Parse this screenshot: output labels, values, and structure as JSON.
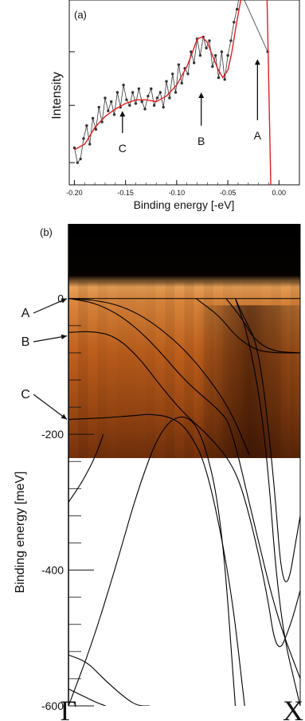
{
  "figure": {
    "colors": {
      "data": "#333333",
      "fit": "#e02020",
      "axis": "#111111",
      "band": "#000000",
      "intensity_high": "#fde6c8",
      "intensity_mid": "#c8641e",
      "intensity_low": "#2a0c02"
    }
  },
  "chart_data": [
    {
      "type": "line",
      "panel_label": "(a)",
      "xlabel": "Binding energy [-eV]",
      "ylabel": "Intensity",
      "xlim": [
        -0.205,
        0.02
      ],
      "ylim": [
        0.0,
        1.0
      ],
      "x_ticks": [
        "-0.20",
        "-0.15",
        "-0.10",
        "-0.05",
        "0.00"
      ],
      "x_tick_values": [
        -0.2,
        -0.15,
        -0.1,
        -0.05,
        0.0
      ],
      "series": [
        {
          "x": [
            -0.2,
            -0.197,
            -0.194,
            -0.191,
            -0.188,
            -0.185,
            -0.182,
            -0.179,
            -0.176,
            -0.173,
            -0.17,
            -0.167,
            -0.164,
            -0.161,
            -0.158,
            -0.155,
            -0.152,
            -0.149,
            -0.146,
            -0.143,
            -0.14,
            -0.137,
            -0.134,
            -0.131,
            -0.128,
            -0.125,
            -0.122,
            -0.119,
            -0.116,
            -0.113,
            -0.11,
            -0.107,
            -0.104,
            -0.101,
            -0.098,
            -0.095,
            -0.092,
            -0.089,
            -0.086,
            -0.083,
            -0.08,
            -0.077,
            -0.074,
            -0.071,
            -0.068,
            -0.065,
            -0.062,
            -0.059,
            -0.056,
            -0.053,
            -0.05,
            -0.047,
            -0.044,
            -0.041,
            -0.038,
            -0.011
          ],
          "y": [
            0.2,
            0.12,
            0.14,
            0.25,
            0.32,
            0.22,
            0.36,
            0.3,
            0.42,
            0.34,
            0.47,
            0.4,
            0.45,
            0.38,
            0.5,
            0.42,
            0.54,
            0.46,
            0.43,
            0.5,
            0.44,
            0.52,
            0.45,
            0.41,
            0.48,
            0.52,
            0.43,
            0.47,
            0.5,
            0.42,
            0.56,
            0.47,
            0.6,
            0.5,
            0.65,
            0.55,
            0.63,
            0.6,
            0.72,
            0.66,
            0.79,
            0.7,
            0.8,
            0.74,
            0.78,
            0.64,
            0.7,
            0.58,
            0.72,
            0.57,
            0.7,
            0.78,
            0.88,
            0.95,
            1.05,
            0.72
          ]
        },
        {
          "x": [
            -0.2,
            -0.19,
            -0.18,
            -0.17,
            -0.16,
            -0.15,
            -0.14,
            -0.13,
            -0.12,
            -0.11,
            -0.1,
            -0.09,
            -0.085,
            -0.08,
            -0.075,
            -0.07,
            -0.065,
            -0.06,
            -0.055,
            -0.05,
            -0.046,
            -0.042,
            -0.038,
            -0.034,
            -0.012,
            -0.01,
            -0.008,
            -0.006
          ],
          "y": [
            0.19,
            0.22,
            0.31,
            0.37,
            0.41,
            0.44,
            0.46,
            0.46,
            0.45,
            0.48,
            0.54,
            0.64,
            0.71,
            0.79,
            0.8,
            0.77,
            0.7,
            0.63,
            0.58,
            0.62,
            0.72,
            0.86,
            0.98,
            1.1,
            1.1,
            0.55,
            0.0,
            -0.6
          ]
        }
      ],
      "annotations": [
        {
          "text": "A",
          "x": -0.021,
          "arrow_from": 0.35,
          "arrow_to": 0.68
        },
        {
          "text": "B",
          "x": -0.076,
          "arrow_from": 0.32,
          "arrow_to": 0.5
        },
        {
          "text": "C",
          "x": -0.153,
          "arrow_from": 0.28,
          "arrow_to": 0.4
        }
      ]
    },
    {
      "type": "heatmap",
      "panel_label": "(b)",
      "ylabel": "Binding energy [meV]",
      "xlabel_left": "Γ",
      "xlabel_right": "X",
      "ylim": [
        -600,
        110
      ],
      "xlim": [
        0,
        1
      ],
      "y_ticks": [
        0,
        -200,
        -400,
        -600
      ],
      "y_minor_ticks": [
        -40,
        -80,
        -120,
        -160,
        -240,
        -280,
        -320,
        -360,
        -440,
        -480,
        -520,
        -560
      ],
      "heatmap_range": [
        -235,
        110
      ],
      "annotations": [
        {
          "text": "A",
          "x": 0.0,
          "y": 0
        },
        {
          "text": "B",
          "x": 0.0,
          "y": -55
        },
        {
          "text": "C",
          "x": 0.0,
          "y": -178
        }
      ],
      "bands": [
        {
          "x": [
            0.0,
            0.1,
            0.2,
            0.3,
            0.4,
            0.5,
            0.6,
            0.7,
            0.78
          ],
          "y": [
            0,
            -2,
            -8,
            -22,
            -45,
            -75,
            -115,
            -165,
            -230
          ]
        },
        {
          "x": [
            0.0,
            0.1,
            0.2,
            0.3,
            0.4,
            0.5,
            0.6,
            0.65,
            0.7,
            0.8,
            0.9,
            1.0
          ],
          "y": [
            0,
            -5,
            -20,
            -45,
            -80,
            -120,
            -150,
            -165,
            -185,
            -330,
            -470,
            -560
          ]
        },
        {
          "x": [
            0.0,
            0.1,
            0.2,
            0.3,
            0.4,
            0.5,
            0.6,
            0.7,
            0.76,
            0.85,
            0.9,
            0.96,
            1.0
          ],
          "y": [
            -50,
            -48,
            -55,
            -85,
            -130,
            -170,
            -200,
            -240,
            -290,
            -420,
            -530,
            -480,
            -430
          ]
        },
        {
          "x": [
            0.0,
            0.15,
            0.3,
            0.35,
            0.45,
            0.52,
            0.6,
            0.7,
            0.76
          ],
          "y": [
            -178,
            -176,
            -172,
            -170,
            -175,
            -195,
            -250,
            -420,
            -600
          ]
        },
        {
          "x": [
            0.0,
            0.1,
            0.2,
            0.3,
            0.4,
            0.5,
            0.58,
            0.66,
            0.72
          ],
          "y": [
            -600,
            -510,
            -400,
            -280,
            -190,
            -168,
            -200,
            -320,
            -600
          ]
        },
        {
          "x": [
            0.0,
            0.06,
            0.12,
            0.15
          ],
          "y": [
            -300,
            -270,
            -230,
            -200
          ]
        },
        {
          "x": [
            0.0,
            0.08,
            0.15,
            0.25,
            0.3,
            0.35
          ],
          "y": [
            -525,
            -535,
            -560,
            -590,
            -600,
            -600
          ]
        },
        {
          "x": [
            0.0,
            0.06,
            0.12,
            0.16
          ],
          "y": [
            -575,
            -585,
            -595,
            -600
          ]
        },
        {
          "x": [
            0.55,
            0.65,
            0.72,
            0.8,
            0.88,
            1.0
          ],
          "y": [
            0,
            -25,
            -55,
            -75,
            -80,
            -80
          ]
        },
        {
          "x": [
            0.68,
            0.75,
            0.8,
            0.88,
            1.0
          ],
          "y": [
            0,
            -30,
            -60,
            -78,
            -80
          ]
        },
        {
          "x": [
            0.72,
            0.76,
            0.82,
            0.88,
            0.93,
            1.0
          ],
          "y": [
            0,
            -30,
            -70,
            -240,
            -460,
            -320
          ]
        },
        {
          "x": [
            0.72,
            0.78,
            0.85,
            0.91,
            1.0
          ],
          "y": [
            0,
            -60,
            -200,
            -470,
            -600
          ]
        }
      ]
    }
  ]
}
